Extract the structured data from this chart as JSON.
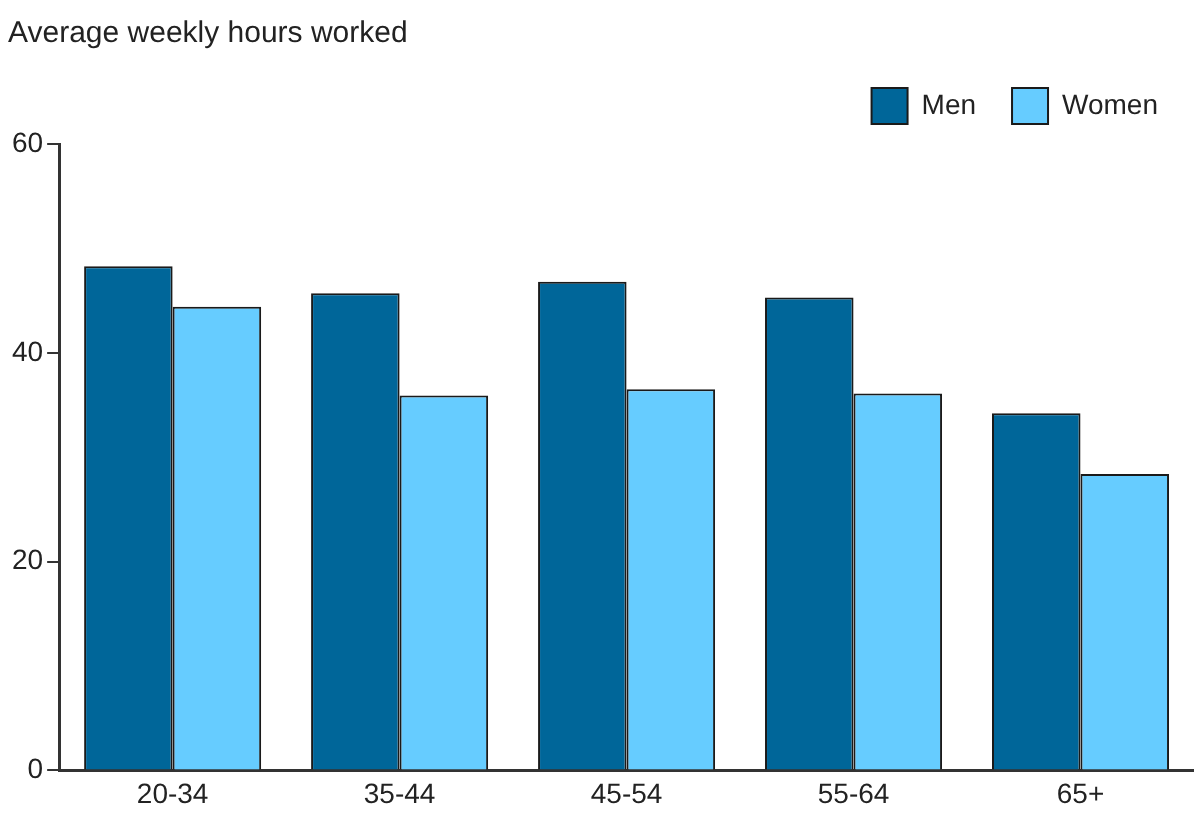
{
  "chart_data": {
    "type": "bar",
    "title": "Average weekly hours worked",
    "categories": [
      "20-34",
      "35-44",
      "45-54",
      "55-64",
      "65+"
    ],
    "series": [
      {
        "name": "Men",
        "color": "#006699",
        "values": [
          48.3,
          45.7,
          46.8,
          45.3,
          34.2
        ]
      },
      {
        "name": "Women",
        "color": "#66ccff",
        "values": [
          44.4,
          35.9,
          36.5,
          36.1,
          28.4
        ]
      }
    ],
    "ylim": [
      0,
      60
    ],
    "yticks": [
      0,
      20,
      40,
      60
    ],
    "grid": false,
    "legend": "top right"
  }
}
